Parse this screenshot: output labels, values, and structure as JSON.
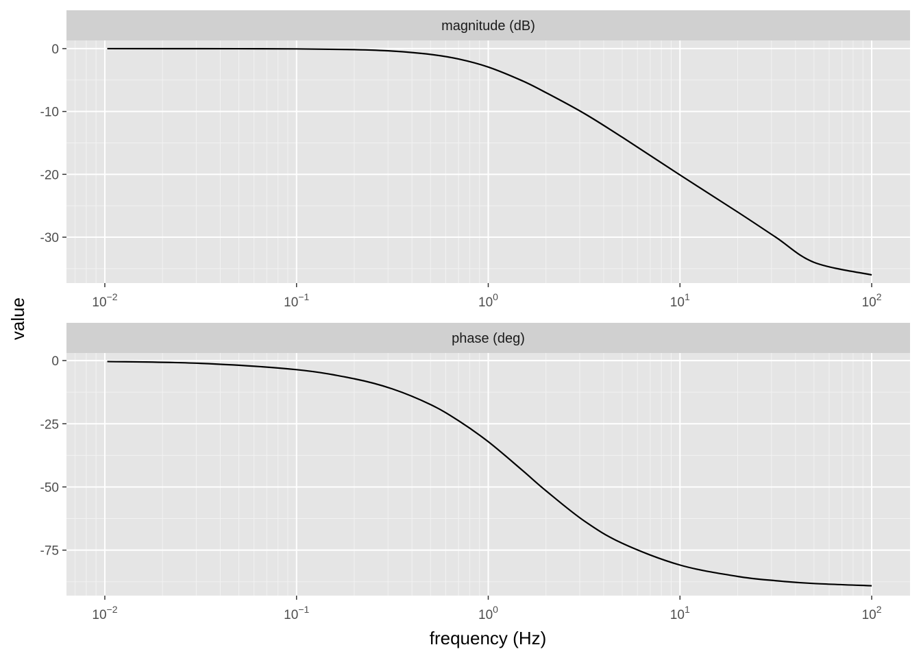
{
  "chart_data": {
    "type": "line",
    "xlabel": "frequency (Hz)",
    "ylabel": "value",
    "x_scale": "log10",
    "x_range": [
      0.01,
      100
    ],
    "x_ticks": [
      0.01,
      0.1,
      1,
      10,
      100
    ],
    "x_tick_labels": [
      {
        "base": "10",
        "exp": "−2"
      },
      {
        "base": "10",
        "exp": "−1"
      },
      {
        "base": "10",
        "exp": "0"
      },
      {
        "base": "10",
        "exp": "1"
      },
      {
        "base": "10",
        "exp": "2"
      }
    ],
    "grid": true,
    "line_color": "#000000",
    "panel_background": "#e5e5e5",
    "strip_background": "#d0d0d0",
    "x": [
      0.0103,
      0.0316,
      0.1,
      0.2,
      0.316,
      0.5,
      0.7,
      1,
      1.5,
      2,
      3.16,
      5,
      10,
      20,
      31.6,
      50,
      100
    ],
    "facets": [
      {
        "name": "magnitude (dB)",
        "y_ticks": [
          0,
          -10,
          -20,
          -30
        ],
        "y_tick_labels": [
          "0",
          "-10",
          "-20",
          "-30"
        ],
        "y_range": [
          -37.3,
          1.3
        ],
        "values": [
          0.0,
          -0.01,
          -0.04,
          -0.16,
          -0.39,
          -0.92,
          -1.65,
          -2.93,
          -5.1,
          -7.0,
          -10.3,
          -14.1,
          -20.1,
          -26.0,
          -30.0,
          -34.0,
          -36.0
        ]
      },
      {
        "name": "phase (deg)",
        "y_ticks": [
          0,
          -25,
          -50,
          -75
        ],
        "y_tick_labels": [
          "0",
          "-25",
          "-50",
          "-75"
        ],
        "y_range": [
          -93.0,
          3.0
        ],
        "values": [
          -0.37,
          -1.1,
          -3.6,
          -7.2,
          -11.2,
          -17.4,
          -23.8,
          -32.1,
          -43.3,
          -51.5,
          -63.4,
          -72.3,
          -80.9,
          -85.4,
          -87.1,
          -88.2,
          -89.1
        ]
      }
    ]
  }
}
